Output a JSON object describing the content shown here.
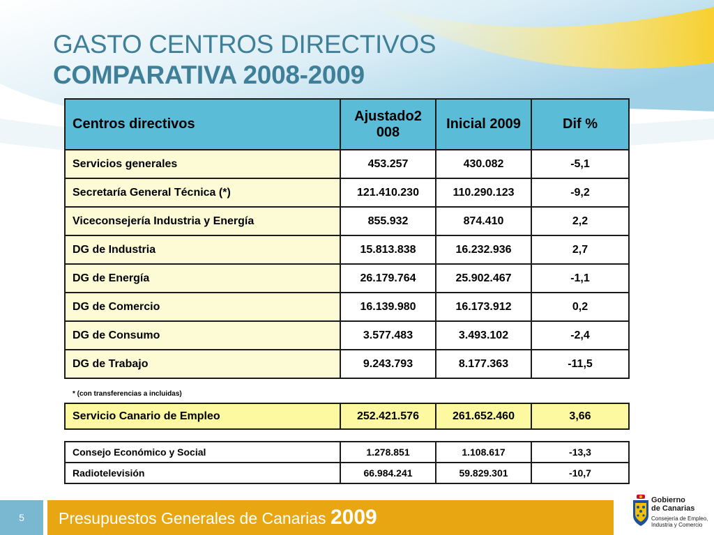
{
  "title": {
    "line1": "GASTO CENTROS DIRECTIVOS",
    "line2": "COMPARATIVA 2008-2009"
  },
  "colors": {
    "title": "#3f7f97",
    "header_bg": "#5bbcd8",
    "name_col_bg": "#fdfbd6",
    "highlight_row_bg": "#fcf9a0",
    "footer_bar": "#e8a712",
    "page_box": "#7ab7d1"
  },
  "main_table": {
    "headers": [
      "Centros directivos",
      "Ajustado2 008",
      "Inicial 2009",
      "Dif %"
    ],
    "rows": [
      [
        "Servicios generales",
        "453.257",
        "430.082",
        "-5,1"
      ],
      [
        "Secretaría General Técnica (*)",
        "121.410.230",
        "110.290.123",
        "-9,2"
      ],
      [
        "Viceconsejería Industria y Energía",
        "855.932",
        "874.410",
        "2,2"
      ],
      [
        "DG de Industria",
        "15.813.838",
        "16.232.936",
        "2,7"
      ],
      [
        "DG de Energía",
        "26.179.764",
        "25.902.467",
        "-1,1"
      ],
      [
        "DG de Comercio",
        "16.139.980",
        "16.173.912",
        "0,2"
      ],
      [
        "DG de Consumo",
        "3.577.483",
        "3.493.102",
        "-2,4"
      ],
      [
        "DG de Trabajo",
        "9.243.793",
        "8.177.363",
        "-11,5"
      ]
    ]
  },
  "footnote": "* (con transferencias a incluidas)",
  "sce_row": [
    "Servicio Canario de Empleo",
    "252.421.576",
    "261.652.460",
    "3,66"
  ],
  "other_rows": [
    [
      "Consejo Económico y Social",
      "1.278.851",
      "1.108.617",
      "-13,3"
    ],
    [
      "Radiotelevisión",
      "66.984.241",
      "59.829.301",
      "-10,7"
    ]
  ],
  "footer": {
    "page_number": "5",
    "text": "Presupuestos Generales de Canarias",
    "year": "2009"
  },
  "logo": {
    "line1": "Gobierno",
    "line2": "de Canarias",
    "line3": "Consejería de Empleo,",
    "line4": "Industria y Comercio"
  }
}
